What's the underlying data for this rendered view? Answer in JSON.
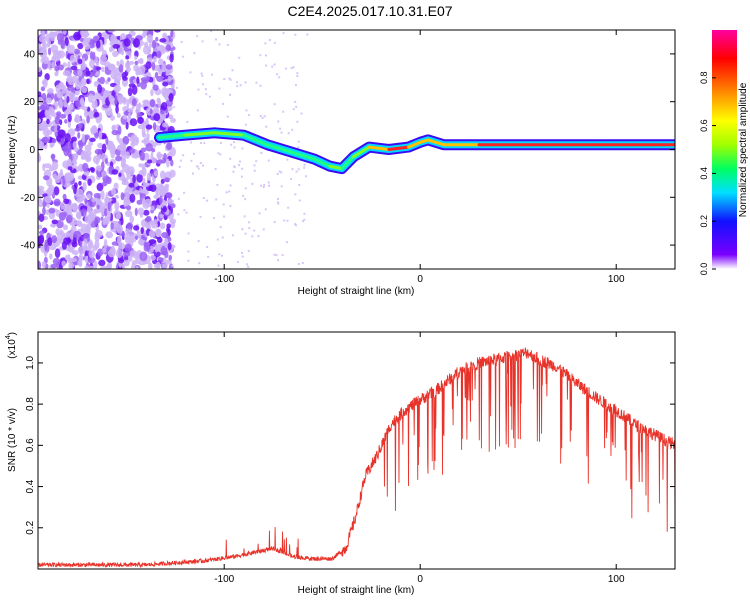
{
  "title": "C2E4.2025.017.10.31.E07",
  "colors": {
    "background": "#ffffff",
    "snr_line": "#e8332a",
    "spectrogram_scatter": "#7a2cf0",
    "ridge_core": "#ff1f1f",
    "ridge_halo": "#3b0cf2"
  },
  "chart_data": [
    {
      "type": "heatmap",
      "xlabel": "Height of straight line (km)",
      "ylabel": "Frequency (Hz)",
      "xlim": [
        -195,
        130
      ],
      "ylim": [
        -50,
        50
      ],
      "xticks": [
        -100,
        0,
        100
      ],
      "yticks": [
        -40,
        -20,
        0,
        20,
        40
      ],
      "grid": false,
      "colorbar": {
        "label": "Normalized spectral amplitude",
        "range": [
          0,
          1
        ],
        "ticks": [
          "0.0",
          "0.2",
          "0.4",
          "0.6",
          "0.8"
        ],
        "colors": [
          "#ffffff",
          "#7a00ff",
          "#1010ff",
          "#00e0ff",
          "#00ff60",
          "#a0ff00",
          "#ffff00",
          "#ff8000",
          "#ff0000",
          "#ff00a0"
        ]
      },
      "ridge": {
        "description_x": [
          -133,
          -120,
          -105,
          -90,
          -78,
          -66,
          -54,
          -46,
          -40,
          -34,
          -26,
          -16,
          -6,
          0,
          4,
          12,
          30,
          60,
          90,
          110,
          120,
          130
        ],
        "y": [
          5,
          6,
          7,
          6,
          2,
          -1,
          -4,
          -7,
          -8,
          -3,
          1,
          0,
          1,
          3,
          4,
          2,
          2,
          2,
          2,
          2,
          2,
          2
        ],
        "amplitude": [
          0.5,
          0.6,
          0.6,
          0.55,
          0.55,
          0.5,
          0.5,
          0.6,
          0.55,
          0.7,
          0.8,
          0.9,
          0.85,
          0.8,
          0.8,
          0.85,
          0.9,
          0.95,
          0.95,
          0.95,
          0.95,
          0.95
        ]
      },
      "noise_region_x": [
        -195,
        -130
      ]
    },
    {
      "type": "line",
      "xlabel": "Height of straight line (km)",
      "ylabel": "SNR (10 * v/v)",
      "y_multiplier": "(x10",
      "y_multiplier_exp": "4",
      "y_multiplier_close": ")",
      "xlim": [
        -195,
        130
      ],
      "ylim": [
        0,
        1.15
      ],
      "xticks": [
        -100,
        0,
        100
      ],
      "yticks": [
        0.2,
        0.4,
        0.6,
        0.8,
        1.0
      ],
      "ytick_labels": [
        "0.2",
        "0.4",
        "0.6",
        "0.8",
        "1.0"
      ],
      "grid": false,
      "series": [
        {
          "x": [
            -195,
            -170,
            -140,
            -125,
            -110,
            -95,
            -85,
            -75,
            -65,
            -55,
            -45,
            -38,
            -33,
            -28,
            -22,
            -15,
            -8,
            0,
            5,
            10,
            15,
            20,
            30,
            40,
            50,
            55,
            60,
            70,
            80,
            90,
            100,
            110,
            120,
            130
          ],
          "y": [
            0.02,
            0.02,
            0.02,
            0.03,
            0.04,
            0.06,
            0.08,
            0.1,
            0.06,
            0.05,
            0.05,
            0.1,
            0.25,
            0.45,
            0.55,
            0.7,
            0.77,
            0.82,
            0.85,
            0.88,
            0.92,
            0.96,
            1.0,
            1.02,
            1.04,
            1.05,
            1.02,
            0.98,
            0.9,
            0.83,
            0.77,
            0.7,
            0.65,
            0.6
          ]
        }
      ]
    }
  ]
}
